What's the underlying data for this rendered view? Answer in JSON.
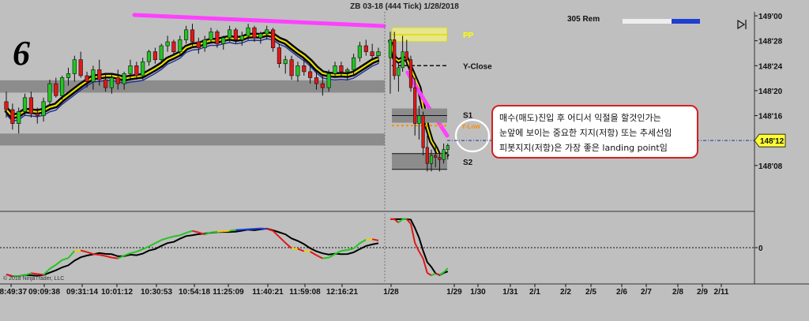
{
  "chart_data": {
    "type": "candlestick",
    "title": "ZB 03-18 (444 Tick)  1/28/2018",
    "panel_number": "6",
    "status_text": "305 Rem",
    "copyright": "© 2018 NinjaTrader, LLC",
    "price_axis": {
      "min": 148.02,
      "max": 149.02,
      "ticks": [
        {
          "label": "149'00",
          "value": 149.0
        },
        {
          "label": "148'28",
          "value": 148.875
        },
        {
          "label": "148'24",
          "value": 148.75
        },
        {
          "label": "148'20",
          "value": 148.625
        },
        {
          "label": "148'16",
          "value": 148.5
        },
        {
          "label": "148'12",
          "value": 148.375
        },
        {
          "label": "148'08",
          "value": 148.25
        }
      ],
      "last_price_label": "148'12",
      "last_price_value": 148.375
    },
    "x_labels": [
      "08:49:37",
      "09:09:38",
      "09:31:14",
      "10:01:12",
      "10:30:53",
      "10:54:18",
      "11:25:09",
      "11:40:21",
      "11:59:08",
      "12:16:21",
      "1/28",
      "1/29",
      "1/30",
      "1/31",
      "2/1",
      "2/2",
      "2/5",
      "2/6",
      "2/7",
      "2/8",
      "2/9",
      "2/11"
    ],
    "levels": [
      {
        "label": "PP",
        "value": 148.906,
        "color": "#ffff00"
      },
      {
        "label": "Y-Close",
        "value": 148.75,
        "color": "#111111"
      },
      {
        "label": "S1",
        "value": 148.5,
        "color": "#111111"
      },
      {
        "label": "Y-Low",
        "value": 148.45,
        "color": "#ff8c00"
      },
      {
        "label": "S2",
        "value": 148.27,
        "color": "#111111"
      }
    ],
    "oscillator_zero_label": "0",
    "series": [
      {
        "name": "Session 1",
        "candles": [
          [
            148.57,
            148.62,
            148.49,
            148.53
          ],
          [
            148.53,
            148.56,
            148.43,
            148.46
          ],
          [
            148.46,
            148.54,
            148.41,
            148.52
          ],
          [
            148.52,
            148.61,
            148.5,
            148.59
          ],
          [
            148.59,
            148.62,
            148.49,
            148.51
          ],
          [
            148.51,
            148.54,
            148.46,
            148.5
          ],
          [
            148.5,
            148.59,
            148.47,
            148.57
          ],
          [
            148.57,
            148.68,
            148.55,
            148.66
          ],
          [
            148.66,
            148.69,
            148.59,
            148.6
          ],
          [
            148.6,
            148.7,
            148.58,
            148.69
          ],
          [
            148.69,
            148.74,
            148.65,
            148.71
          ],
          [
            148.71,
            148.8,
            148.67,
            148.78
          ],
          [
            148.78,
            148.82,
            148.69,
            148.7
          ],
          [
            148.7,
            148.72,
            148.64,
            148.67
          ],
          [
            148.67,
            148.75,
            148.63,
            148.73
          ],
          [
            148.73,
            148.78,
            148.65,
            148.68
          ],
          [
            148.68,
            148.71,
            148.62,
            148.64
          ],
          [
            148.64,
            148.71,
            148.61,
            148.69
          ],
          [
            148.69,
            148.73,
            148.63,
            148.66
          ],
          [
            148.66,
            148.72,
            148.63,
            148.71
          ],
          [
            148.71,
            148.78,
            148.68,
            148.75
          ],
          [
            148.75,
            148.77,
            148.68,
            148.7
          ],
          [
            148.7,
            148.79,
            148.68,
            148.77
          ],
          [
            148.77,
            148.83,
            148.75,
            148.82
          ],
          [
            148.82,
            148.84,
            148.76,
            148.78
          ],
          [
            148.78,
            148.86,
            148.76,
            148.85
          ],
          [
            148.85,
            148.9,
            148.82,
            148.87
          ],
          [
            148.87,
            148.88,
            148.8,
            148.82
          ],
          [
            148.82,
            148.9,
            148.8,
            148.88
          ],
          [
            148.88,
            148.95,
            148.86,
            148.93
          ],
          [
            148.93,
            148.96,
            148.85,
            148.87
          ],
          [
            148.87,
            148.89,
            148.81,
            148.84
          ],
          [
            148.84,
            148.9,
            148.82,
            148.88
          ],
          [
            148.88,
            148.94,
            148.86,
            148.92
          ],
          [
            148.92,
            148.93,
            148.84,
            148.86
          ],
          [
            148.86,
            148.9,
            148.83,
            148.89
          ],
          [
            148.89,
            148.95,
            148.87,
            148.93
          ],
          [
            148.93,
            148.94,
            148.86,
            148.88
          ],
          [
            148.88,
            148.92,
            148.85,
            148.9
          ],
          [
            148.9,
            148.96,
            148.88,
            148.94
          ],
          [
            148.94,
            148.95,
            148.87,
            148.89
          ],
          [
            148.89,
            148.92,
            148.86,
            148.91
          ],
          [
            148.91,
            148.95,
            148.88,
            148.93
          ],
          [
            148.93,
            148.94,
            148.82,
            148.84
          ],
          [
            148.84,
            148.86,
            148.74,
            148.76
          ],
          [
            148.76,
            148.8,
            148.71,
            148.78
          ],
          [
            148.78,
            148.8,
            148.68,
            148.7
          ],
          [
            148.7,
            148.77,
            148.67,
            148.75
          ],
          [
            148.75,
            148.78,
            148.7,
            148.72
          ],
          [
            148.72,
            148.76,
            148.66,
            148.69
          ],
          [
            148.69,
            148.73,
            148.63,
            148.66
          ],
          [
            148.66,
            148.7,
            148.6,
            148.64
          ],
          [
            148.64,
            148.73,
            148.62,
            148.71
          ],
          [
            148.71,
            148.77,
            148.69,
            148.75
          ],
          [
            148.75,
            148.77,
            148.7,
            148.72
          ],
          [
            148.72,
            148.74,
            148.68,
            148.73
          ],
          [
            148.73,
            148.81,
            148.7,
            148.79
          ],
          [
            148.79,
            148.87,
            148.77,
            148.85
          ],
          [
            148.85,
            148.88,
            148.8,
            148.82
          ],
          [
            148.82,
            148.86,
            148.78,
            148.8
          ],
          [
            148.8,
            148.84,
            148.76,
            148.82
          ]
        ]
      },
      {
        "name": "Session 2",
        "candles": [
          [
            148.79,
            148.92,
            148.61,
            148.88
          ],
          [
            148.88,
            148.92,
            148.68,
            148.7
          ],
          [
            148.7,
            148.76,
            148.62,
            148.74
          ],
          [
            148.74,
            148.9,
            148.72,
            148.82
          ],
          [
            148.82,
            148.88,
            148.75,
            148.78
          ],
          [
            148.78,
            148.8,
            148.62,
            148.64
          ],
          [
            148.64,
            148.69,
            148.4,
            148.46
          ],
          [
            148.46,
            148.55,
            148.38,
            148.5
          ],
          [
            148.5,
            148.52,
            148.3,
            148.34
          ],
          [
            148.34,
            148.4,
            148.22,
            148.26
          ],
          [
            148.26,
            148.33,
            148.22,
            148.3
          ],
          [
            148.3,
            148.36,
            148.24,
            148.29
          ],
          [
            148.29,
            148.32,
            148.22,
            148.28
          ],
          [
            148.28,
            148.36,
            148.26,
            148.33
          ],
          [
            148.33,
            148.36,
            148.28,
            148.35
          ]
        ]
      }
    ]
  }
}
